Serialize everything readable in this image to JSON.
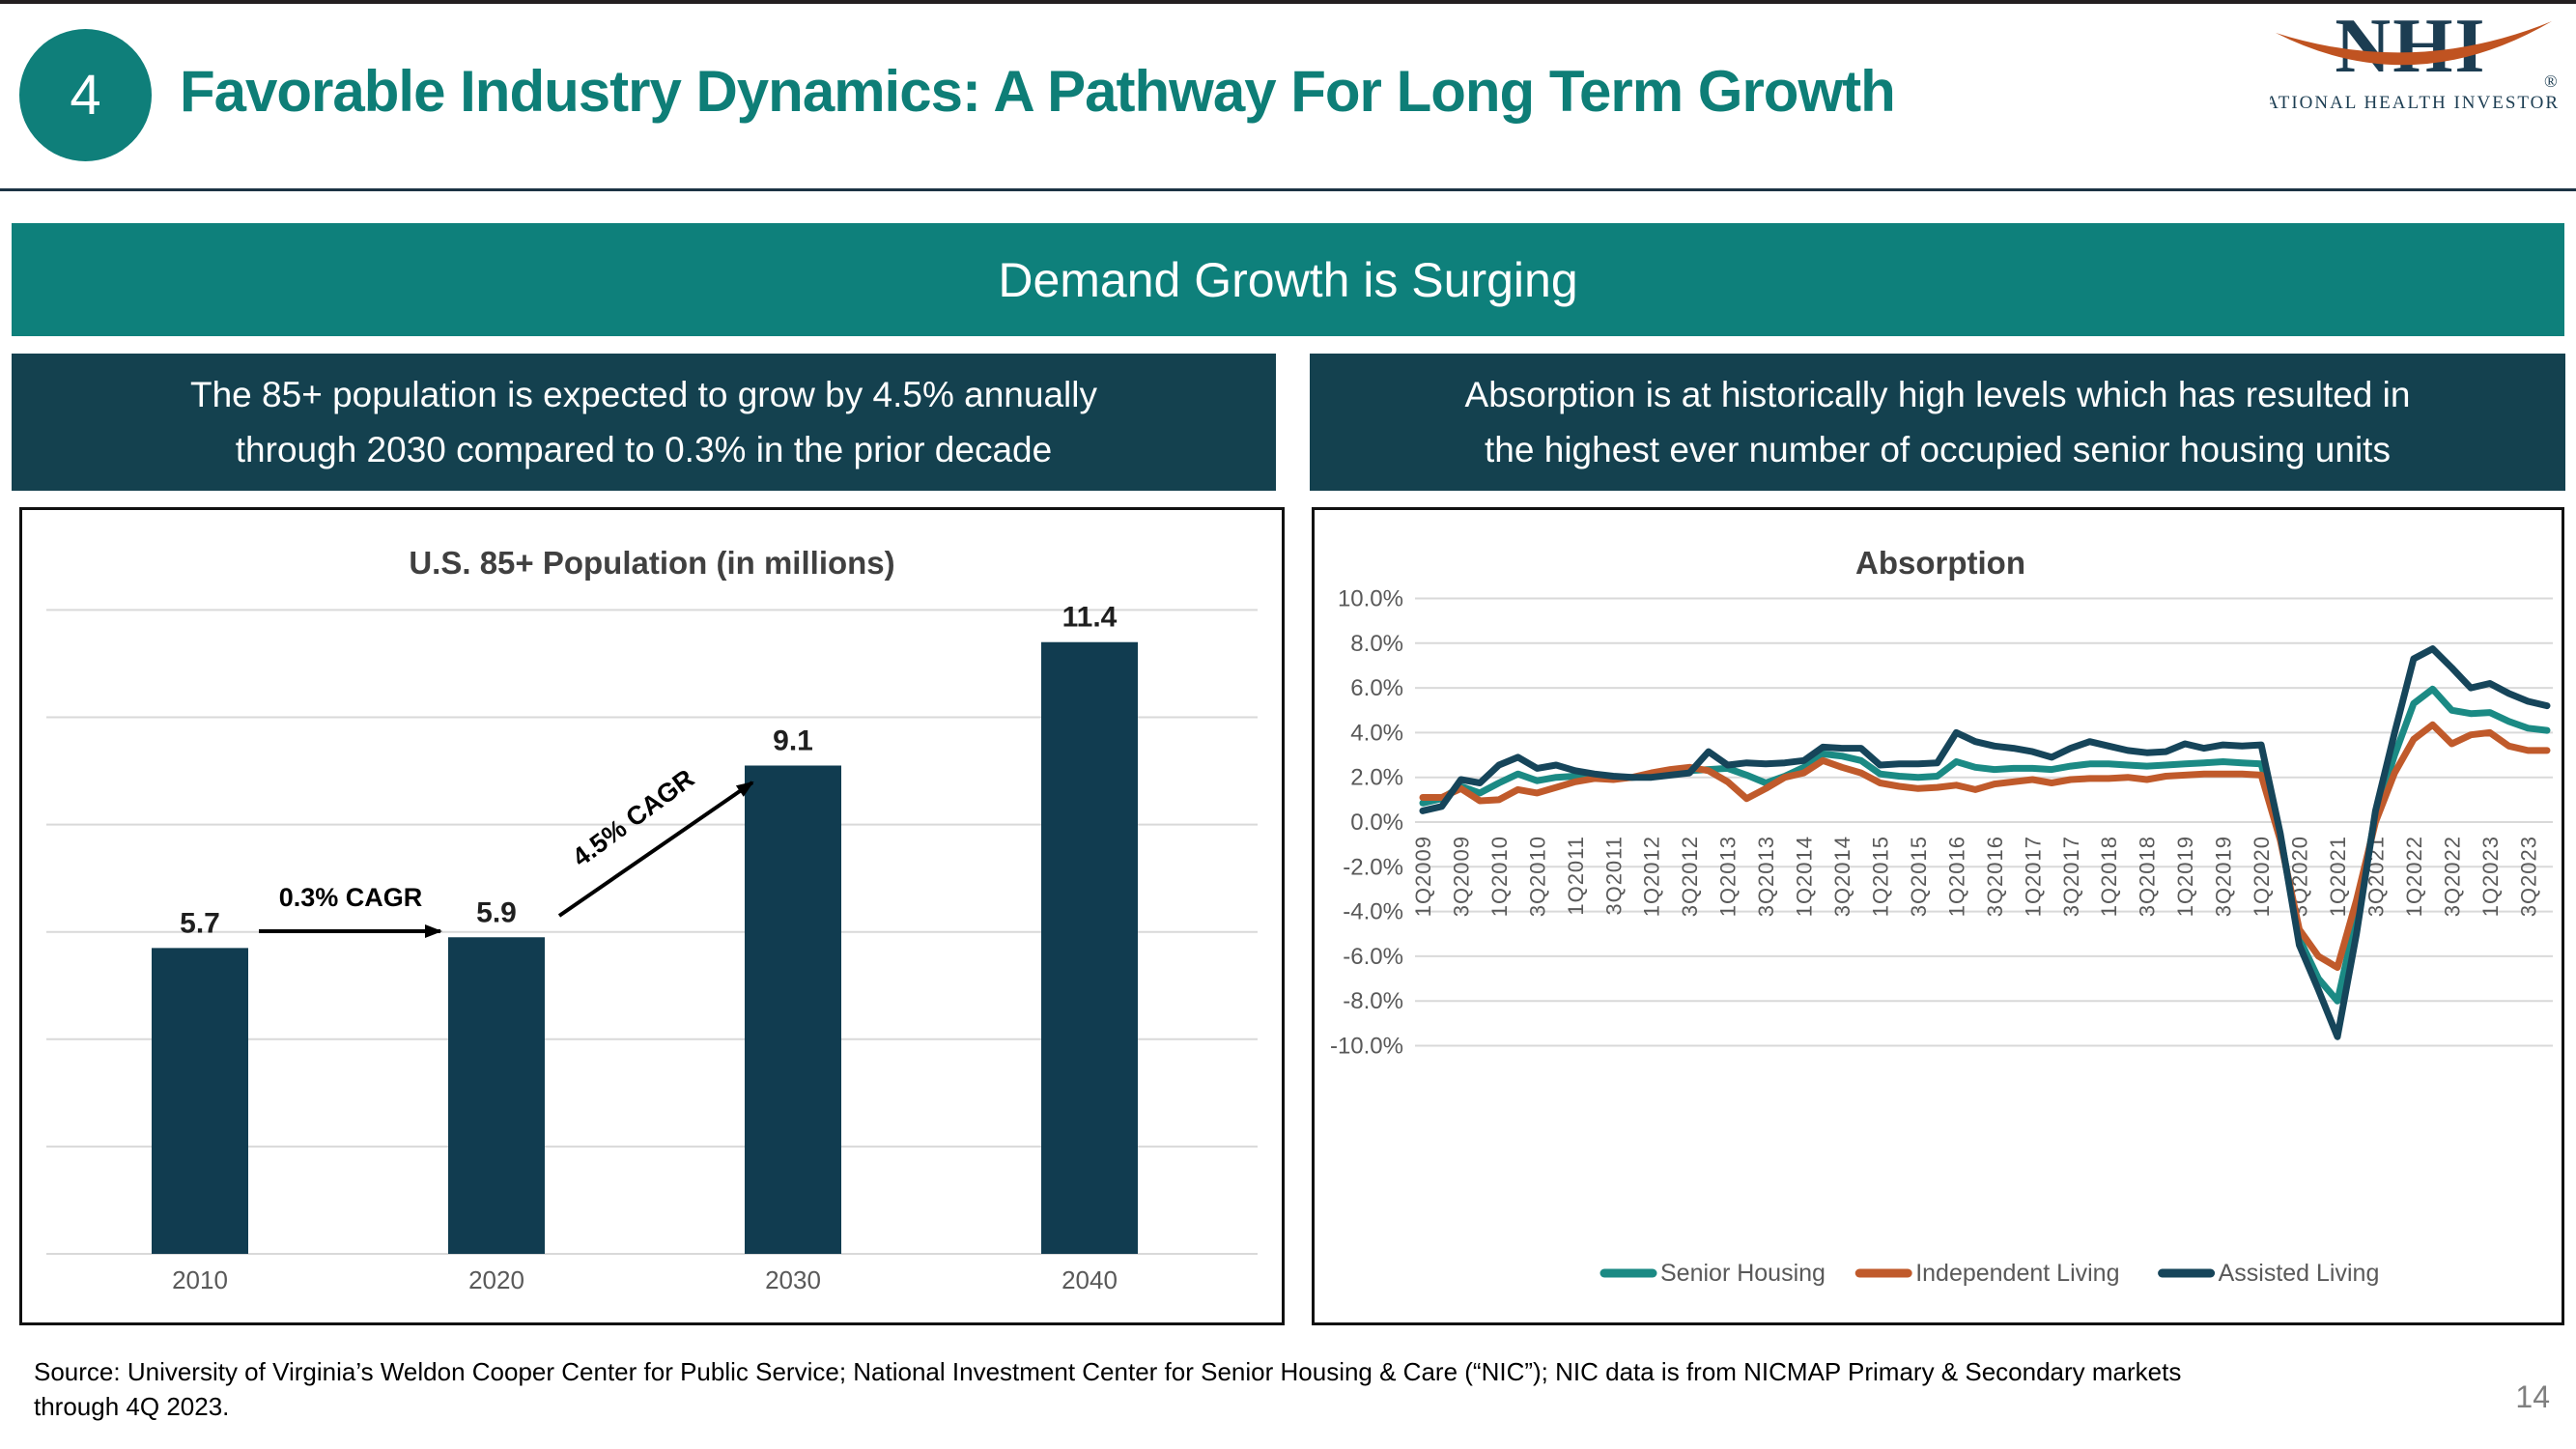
{
  "header": {
    "badge": "4",
    "title": "Favorable Industry Dynamics: A Pathway For Long Term Growth"
  },
  "logo": {
    "acronym": "NHI",
    "registered": "®",
    "subtext": "NATIONAL HEALTH INVESTORS",
    "navy": "#1c3d52",
    "orange": "#c05321"
  },
  "banner": {
    "title": "Demand Growth is Surging"
  },
  "panels": {
    "left": {
      "text": "The 85+ population is expected to grow by 4.5% annually\nthrough 2030 compared to 0.3% in the prior decade"
    },
    "right": {
      "text": "Absorption is at historically high levels which has resulted in\nthe highest ever number of occupied senior housing units"
    }
  },
  "colors": {
    "accent_teal": "#0e807b",
    "panel_navy": "#14414f",
    "bar_navy": "#113c50",
    "gridline": "#d9d9d9",
    "axis_text": "#595959"
  },
  "chart_data": [
    {
      "type": "bar",
      "title": "U.S. 85+ Population (in millions)",
      "categories": [
        "2010",
        "2020",
        "2030",
        "2040"
      ],
      "values": [
        5.7,
        5.9,
        9.1,
        11.4
      ],
      "data_labels": [
        "5.7",
        "5.9",
        "9.1",
        "11.4"
      ],
      "bar_color": "#113c50",
      "ylim": [
        0,
        12
      ],
      "grid_step": 2,
      "grid": true,
      "annotations": [
        {
          "label": "0.3% CAGR",
          "type": "horizontal-arrow",
          "from_category": "2010",
          "to_category": "2020"
        },
        {
          "label": "4.5% CAGR",
          "type": "diagonal-arrow",
          "from_category": "2020",
          "to_category": "2030"
        }
      ]
    },
    {
      "type": "line",
      "title": "Absorption",
      "ylim": [
        -10,
        10
      ],
      "ytick_step": 2,
      "ytick_format": "percent_one_decimal",
      "grid": true,
      "legend_position": "bottom",
      "tick_every": 2,
      "x": [
        "1Q2009",
        "2Q2009",
        "3Q2009",
        "4Q2009",
        "1Q2010",
        "2Q2010",
        "3Q2010",
        "4Q2010",
        "1Q2011",
        "2Q2011",
        "3Q2011",
        "4Q2011",
        "1Q2012",
        "2Q2012",
        "3Q2012",
        "4Q2012",
        "1Q2013",
        "2Q2013",
        "3Q2013",
        "4Q2013",
        "1Q2014",
        "2Q2014",
        "3Q2014",
        "4Q2014",
        "1Q2015",
        "2Q2015",
        "3Q2015",
        "4Q2015",
        "1Q2016",
        "2Q2016",
        "3Q2016",
        "4Q2016",
        "1Q2017",
        "2Q2017",
        "3Q2017",
        "4Q2017",
        "1Q2018",
        "2Q2018",
        "3Q2018",
        "4Q2018",
        "1Q2019",
        "2Q2019",
        "3Q2019",
        "4Q2019",
        "1Q2020",
        "2Q2020",
        "3Q2020",
        "4Q2020",
        "1Q2021",
        "2Q2021",
        "3Q2021",
        "4Q2021",
        "1Q2022",
        "2Q2022",
        "3Q2022",
        "4Q2022",
        "1Q2023",
        "2Q2023",
        "3Q2023",
        "4Q2023"
      ],
      "series": [
        {
          "name": "Senior Housing",
          "color": "#1b8a84",
          "values": [
            0.85,
            1.05,
            1.6,
            1.3,
            1.75,
            2.15,
            1.85,
            2.0,
            2.05,
            2.0,
            1.95,
            2.0,
            2.05,
            2.2,
            2.3,
            2.35,
            2.4,
            2.1,
            1.75,
            2.05,
            2.45,
            3.05,
            2.95,
            2.75,
            2.15,
            2.05,
            2.0,
            2.05,
            2.7,
            2.45,
            2.35,
            2.4,
            2.4,
            2.35,
            2.5,
            2.6,
            2.6,
            2.55,
            2.5,
            2.55,
            2.6,
            2.65,
            2.7,
            2.65,
            2.6,
            -0.6,
            -5.2,
            -7.0,
            -8.0,
            -4.2,
            0.3,
            3.0,
            5.3,
            5.95,
            5.0,
            4.85,
            4.9,
            4.5,
            4.2,
            4.1
          ]
        },
        {
          "name": "Independent Living",
          "color": "#c05a2b",
          "values": [
            1.1,
            1.1,
            1.5,
            0.95,
            1.0,
            1.45,
            1.3,
            1.55,
            1.8,
            1.95,
            1.9,
            2.0,
            2.2,
            2.35,
            2.45,
            2.3,
            1.8,
            1.05,
            1.5,
            2.0,
            2.2,
            2.75,
            2.45,
            2.2,
            1.75,
            1.6,
            1.5,
            1.55,
            1.65,
            1.45,
            1.7,
            1.8,
            1.9,
            1.75,
            1.9,
            1.95,
            1.95,
            2.0,
            1.9,
            2.05,
            2.1,
            2.15,
            2.15,
            2.15,
            2.1,
            -0.8,
            -4.8,
            -6.0,
            -6.5,
            -3.5,
            0.0,
            2.2,
            3.7,
            4.35,
            3.5,
            3.9,
            4.0,
            3.4,
            3.2,
            3.2
          ]
        },
        {
          "name": "Assisted Living",
          "color": "#16455a",
          "values": [
            0.5,
            0.7,
            1.9,
            1.75,
            2.55,
            2.9,
            2.4,
            2.55,
            2.3,
            2.15,
            2.05,
            2.0,
            2.0,
            2.1,
            2.2,
            3.15,
            2.55,
            2.65,
            2.6,
            2.65,
            2.75,
            3.35,
            3.3,
            3.3,
            2.55,
            2.6,
            2.6,
            2.65,
            4.0,
            3.6,
            3.4,
            3.3,
            3.15,
            2.9,
            3.3,
            3.6,
            3.4,
            3.2,
            3.1,
            3.15,
            3.5,
            3.3,
            3.45,
            3.4,
            3.45,
            -0.5,
            -5.5,
            -7.5,
            -9.6,
            -5.0,
            0.5,
            4.0,
            7.3,
            7.75,
            6.9,
            6.0,
            6.2,
            5.75,
            5.4,
            5.2
          ]
        }
      ]
    }
  ],
  "footer": {
    "source": "Source:  University of Virginia’s Weldon Cooper Center for Public Service; National Investment Center for Senior Housing & Care (“NIC”); NIC data is from NICMAP Primary & Secondary markets\nthrough 4Q 2023.",
    "page_number": "14"
  }
}
